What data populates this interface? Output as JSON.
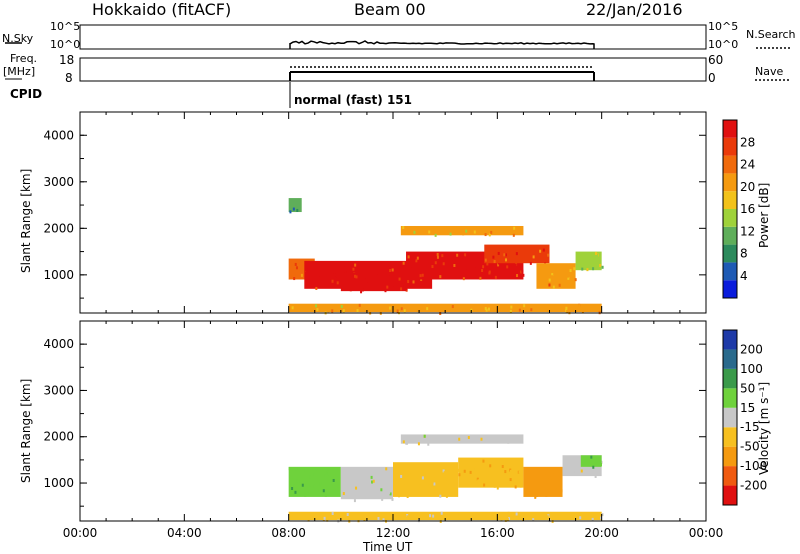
{
  "header": {
    "station": "Hokkaido (fitACF)",
    "beam": "Beam 00",
    "date": "22/Jan/2016"
  },
  "top_panel": {
    "left_label": "N.Sky",
    "left_ticks": [
      "10^5",
      "10^0"
    ],
    "right_ticks": [
      "10^5",
      "10^0"
    ],
    "right_label": "N.Search"
  },
  "freq_panel": {
    "left_label_line1": "Freq.",
    "left_label_line2": "[MHz]",
    "left_ticks": [
      "18",
      "8"
    ],
    "right_ticks": [
      "60",
      "0"
    ],
    "right_label": "Nave"
  },
  "cpid": {
    "label": "CPID",
    "program": "normal (fast) 151"
  },
  "colors": {
    "power_scale": [
      "#0a1cdc",
      "#1e5ab4",
      "#2c8a5c",
      "#5fae5a",
      "#9fd23a",
      "#f2c21a",
      "#f59a10",
      "#f06a0c",
      "#ea3a0a",
      "#e01010"
    ],
    "velocity_scale": [
      "#e01010",
      "#f05a10",
      "#f59a10",
      "#f7c020",
      "#c8c8c8",
      "#6fd23c",
      "#3a9a4a",
      "#2a6a8c",
      "#1e3aa8"
    ]
  },
  "chart_data": [
    {
      "type": "heatmap",
      "panel": "power",
      "xlabel": "Time UT",
      "ylabel": "Slant Range [km]",
      "x_ticks": [
        "00:00",
        "04:00",
        "08:00",
        "12:00",
        "16:00",
        "20:00",
        "00:00"
      ],
      "y_ticks": [
        "4000",
        "3000",
        "2000",
        "1000"
      ],
      "xlim_hours": [
        0,
        24
      ],
      "ylim_km": [
        180,
        4500
      ],
      "colorbar": {
        "label": "Power [dB]",
        "ticks": [
          "28",
          "24",
          "20",
          "16",
          "12",
          "8",
          "4"
        ],
        "range": [
          0,
          30
        ]
      },
      "regions": [
        {
          "t0": 8.0,
          "t1": 9.0,
          "r0": 900,
          "r1": 1350,
          "value": 22
        },
        {
          "t0": 8.6,
          "t1": 13.5,
          "r0": 700,
          "r1": 1300,
          "value": 27
        },
        {
          "t0": 10.0,
          "t1": 12.5,
          "r0": 650,
          "r1": 1050,
          "value": 29
        },
        {
          "t0": 12.5,
          "t1": 17.0,
          "r0": 900,
          "r1": 1500,
          "value": 27
        },
        {
          "t0": 15.5,
          "t1": 18.0,
          "r0": 1250,
          "r1": 1650,
          "value": 25
        },
        {
          "t0": 17.5,
          "t1": 19.0,
          "r0": 700,
          "r1": 1250,
          "value": 20
        },
        {
          "t0": 19.0,
          "t1": 20.0,
          "r0": 1100,
          "r1": 1500,
          "value": 14
        },
        {
          "t0": 8.0,
          "t1": 20.0,
          "r0": 200,
          "r1": 380,
          "value": 18
        },
        {
          "t0": 12.3,
          "t1": 17.0,
          "r0": 1850,
          "r1": 2050,
          "value": 18
        },
        {
          "t0": 8.0,
          "t1": 8.5,
          "r0": 2350,
          "r1": 2650,
          "value": 10
        }
      ]
    },
    {
      "type": "heatmap",
      "panel": "velocity",
      "xlabel": "Time UT",
      "ylabel": "Slant Range [km]",
      "x_ticks": [
        "00:00",
        "04:00",
        "08:00",
        "12:00",
        "16:00",
        "20:00",
        "00:00"
      ],
      "y_ticks": [
        "4000",
        "3000",
        "2000",
        "1000"
      ],
      "xlim_hours": [
        0,
        24
      ],
      "ylim_km": [
        180,
        4500
      ],
      "colorbar": {
        "label": "Velocity [m s⁻¹]",
        "ticks": [
          "200",
          "100",
          "50",
          "15",
          "-15",
          "-50",
          "-100",
          "-200"
        ]
      },
      "regions": [
        {
          "t0": 8.0,
          "t1": 10.0,
          "r0": 700,
          "r1": 1350,
          "value": 35
        },
        {
          "t0": 10.0,
          "t1": 12.0,
          "r0": 650,
          "r1": 1350,
          "value": 0
        },
        {
          "t0": 12.0,
          "t1": 14.5,
          "r0": 700,
          "r1": 1450,
          "value": -30
        },
        {
          "t0": 14.5,
          "t1": 17.0,
          "r0": 900,
          "r1": 1550,
          "value": -40
        },
        {
          "t0": 17.0,
          "t1": 18.5,
          "r0": 700,
          "r1": 1350,
          "value": -80
        },
        {
          "t0": 18.5,
          "t1": 20.0,
          "r0": 1150,
          "r1": 1600,
          "value": 0
        },
        {
          "t0": 19.2,
          "t1": 20.0,
          "r0": 1350,
          "r1": 1600,
          "value": 40
        },
        {
          "t0": 12.3,
          "t1": 17.0,
          "r0": 1850,
          "r1": 2050,
          "value": 0
        },
        {
          "t0": 8.0,
          "t1": 20.0,
          "r0": 200,
          "r1": 380,
          "value": -20
        }
      ]
    }
  ]
}
